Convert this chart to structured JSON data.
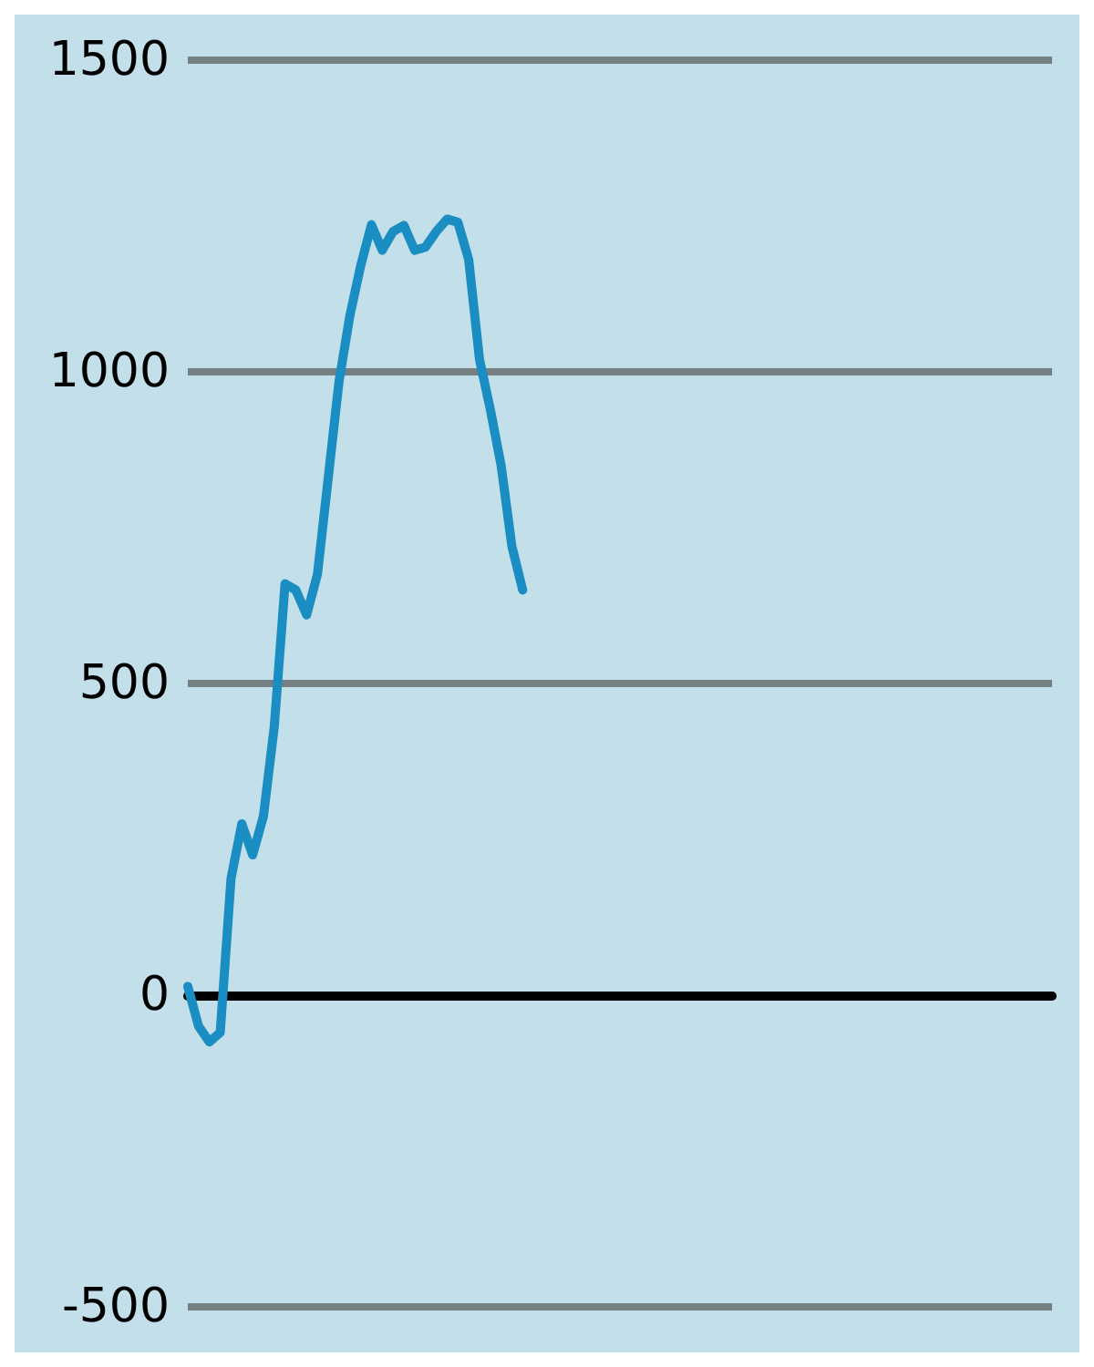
{
  "chart_data": {
    "type": "line",
    "categories": [
      null,
      null,
      null,
      null,
      null,
      null,
      null,
      null,
      null,
      null,
      null,
      null,
      null,
      null,
      null,
      null,
      null,
      null,
      null,
      null,
      null,
      null,
      null,
      null,
      null,
      null,
      null,
      null,
      null,
      null,
      null,
      null,
      null,
      null,
      null,
      null,
      null,
      null,
      null,
      null,
      null,
      null,
      null,
      null,
      null,
      null,
      null,
      null,
      null,
      null,
      null,
      null,
      null,
      null,
      null,
      null,
      null,
      null,
      null,
      null,
      null,
      null,
      null,
      null,
      null,
      null,
      null,
      null,
      null,
      null,
      null,
      null,
      null,
      null,
      null,
      null,
      null,
      null,
      null,
      null,
      null
    ],
    "series": [
      {
        "color": "#1a8dc2",
        "values": [
          14,
          -50,
          -75,
          -60,
          187,
          275,
          225,
          287,
          430,
          660,
          650,
          610,
          675,
          830,
          985,
          1090,
          1170,
          1236,
          1195,
          1225,
          1235,
          1195,
          1200,
          1225,
          1245,
          1240,
          1180,
          1020,
          940,
          850,
          720,
          650,
          null,
          null,
          null,
          null,
          null,
          null,
          null,
          null,
          null,
          null,
          null,
          null,
          null,
          null,
          null,
          null,
          null,
          null,
          null,
          null,
          null,
          null,
          null,
          null,
          null,
          null,
          null,
          null,
          null,
          null,
          null,
          null,
          null,
          null,
          null,
          null,
          null,
          null,
          null,
          null,
          null,
          null,
          null,
          null,
          null,
          null,
          null,
          null,
          null
        ]
      }
    ],
    "ylim": [
      -500,
      1500
    ],
    "yticks": [
      -500,
      0,
      500,
      1000,
      1500
    ],
    "grid": "y",
    "tick_labels": "y",
    "line_style": "solid"
  }
}
